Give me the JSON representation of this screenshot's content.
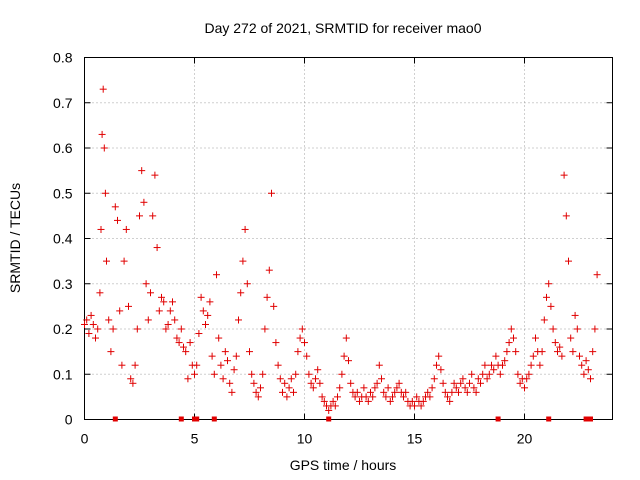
{
  "chart_data": {
    "type": "scatter",
    "title": "Day 272 of 2021, SRMTID for receiver mao0",
    "xlabel": "GPS time / hours",
    "ylabel": "SRMTID / TECUs",
    "xlim": [
      0,
      24
    ],
    "ylim": [
      0,
      0.8
    ],
    "xticks": [
      "0",
      "5",
      "10",
      "15",
      "20"
    ],
    "xtick_values": [
      0,
      5,
      10,
      15,
      20
    ],
    "yticks": [
      "0",
      "0.1",
      "0.2",
      "0.3",
      "0.4",
      "0.5",
      "0.6",
      "0.7",
      "0.8"
    ],
    "ytick_values": [
      0,
      0.1,
      0.2,
      0.3,
      0.4,
      0.5,
      0.6,
      0.7,
      0.8
    ],
    "grid": true,
    "marker": "+",
    "color": "#e00000",
    "series": [
      {
        "name": "SRMTID",
        "points": [
          [
            0.0,
            0.21
          ],
          [
            0.1,
            0.22
          ],
          [
            0.2,
            0.19
          ],
          [
            0.3,
            0.23
          ],
          [
            0.4,
            0.21
          ],
          [
            0.5,
            0.18
          ],
          [
            0.6,
            0.2
          ],
          [
            0.7,
            0.28
          ],
          [
            0.75,
            0.42
          ],
          [
            0.8,
            0.63
          ],
          [
            0.85,
            0.73
          ],
          [
            0.9,
            0.6
          ],
          [
            0.95,
            0.5
          ],
          [
            1.0,
            0.35
          ],
          [
            1.1,
            0.22
          ],
          [
            1.2,
            0.15
          ],
          [
            1.3,
            0.2
          ],
          [
            1.4,
            0.47
          ],
          [
            1.5,
            0.44
          ],
          [
            1.6,
            0.24
          ],
          [
            1.7,
            0.12
          ],
          [
            1.8,
            0.35
          ],
          [
            1.9,
            0.42
          ],
          [
            2.0,
            0.25
          ],
          [
            2.1,
            0.09
          ],
          [
            2.2,
            0.08
          ],
          [
            2.3,
            0.12
          ],
          [
            2.4,
            0.2
          ],
          [
            2.5,
            0.45
          ],
          [
            2.6,
            0.55
          ],
          [
            2.7,
            0.48
          ],
          [
            2.8,
            0.3
          ],
          [
            2.9,
            0.22
          ],
          [
            3.0,
            0.28
          ],
          [
            3.1,
            0.45
          ],
          [
            3.2,
            0.54
          ],
          [
            3.3,
            0.38
          ],
          [
            3.4,
            0.24
          ],
          [
            3.5,
            0.27
          ],
          [
            3.6,
            0.26
          ],
          [
            3.7,
            0.2
          ],
          [
            3.8,
            0.21
          ],
          [
            3.9,
            0.24
          ],
          [
            4.0,
            0.26
          ],
          [
            4.1,
            0.22
          ],
          [
            4.2,
            0.18
          ],
          [
            4.3,
            0.17
          ],
          [
            4.4,
            0.2
          ],
          [
            4.5,
            0.16
          ],
          [
            4.6,
            0.15
          ],
          [
            4.7,
            0.09
          ],
          [
            4.8,
            0.17
          ],
          [
            4.9,
            0.12
          ],
          [
            5.0,
            0.1
          ],
          [
            5.1,
            0.12
          ],
          [
            5.2,
            0.19
          ],
          [
            5.3,
            0.27
          ],
          [
            5.4,
            0.24
          ],
          [
            5.5,
            0.21
          ],
          [
            5.6,
            0.23
          ],
          [
            5.7,
            0.26
          ],
          [
            5.8,
            0.14
          ],
          [
            5.9,
            0.1
          ],
          [
            6.0,
            0.32
          ],
          [
            6.1,
            0.18
          ],
          [
            6.2,
            0.12
          ],
          [
            6.3,
            0.09
          ],
          [
            6.4,
            0.15
          ],
          [
            6.5,
            0.13
          ],
          [
            6.6,
            0.08
          ],
          [
            6.7,
            0.06
          ],
          [
            6.8,
            0.11
          ],
          [
            6.9,
            0.14
          ],
          [
            7.0,
            0.22
          ],
          [
            7.1,
            0.28
          ],
          [
            7.2,
            0.35
          ],
          [
            7.3,
            0.42
          ],
          [
            7.4,
            0.3
          ],
          [
            7.5,
            0.15
          ],
          [
            7.6,
            0.1
          ],
          [
            7.7,
            0.08
          ],
          [
            7.8,
            0.06
          ],
          [
            7.9,
            0.05
          ],
          [
            8.0,
            0.07
          ],
          [
            8.1,
            0.1
          ],
          [
            8.2,
            0.2
          ],
          [
            8.3,
            0.27
          ],
          [
            8.4,
            0.33
          ],
          [
            8.5,
            0.5
          ],
          [
            8.6,
            0.25
          ],
          [
            8.7,
            0.17
          ],
          [
            8.8,
            0.12
          ],
          [
            8.9,
            0.09
          ],
          [
            9.0,
            0.06
          ],
          [
            9.1,
            0.08
          ],
          [
            9.2,
            0.05
          ],
          [
            9.3,
            0.07
          ],
          [
            9.4,
            0.09
          ],
          [
            9.5,
            0.06
          ],
          [
            9.6,
            0.1
          ],
          [
            9.7,
            0.15
          ],
          [
            9.8,
            0.18
          ],
          [
            9.9,
            0.2
          ],
          [
            10.0,
            0.17
          ],
          [
            10.1,
            0.14
          ],
          [
            10.2,
            0.1
          ],
          [
            10.3,
            0.08
          ],
          [
            10.4,
            0.07
          ],
          [
            10.5,
            0.09
          ],
          [
            10.6,
            0.11
          ],
          [
            10.7,
            0.08
          ],
          [
            10.8,
            0.05
          ],
          [
            10.9,
            0.04
          ],
          [
            11.0,
            0.03
          ],
          [
            11.1,
            0.02
          ],
          [
            11.2,
            0.03
          ],
          [
            11.3,
            0.04
          ],
          [
            11.4,
            0.03
          ],
          [
            11.5,
            0.05
          ],
          [
            11.6,
            0.07
          ],
          [
            11.7,
            0.1
          ],
          [
            11.8,
            0.14
          ],
          [
            11.9,
            0.18
          ],
          [
            12.0,
            0.13
          ],
          [
            12.1,
            0.08
          ],
          [
            12.2,
            0.06
          ],
          [
            12.3,
            0.05
          ],
          [
            12.4,
            0.06
          ],
          [
            12.5,
            0.04
          ],
          [
            12.6,
            0.05
          ],
          [
            12.7,
            0.07
          ],
          [
            12.8,
            0.05
          ],
          [
            12.9,
            0.04
          ],
          [
            13.0,
            0.06
          ],
          [
            13.1,
            0.05
          ],
          [
            13.2,
            0.07
          ],
          [
            13.3,
            0.08
          ],
          [
            13.4,
            0.12
          ],
          [
            13.5,
            0.09
          ],
          [
            13.6,
            0.06
          ],
          [
            13.7,
            0.05
          ],
          [
            13.8,
            0.07
          ],
          [
            13.9,
            0.04
          ],
          [
            14.0,
            0.05
          ],
          [
            14.1,
            0.06
          ],
          [
            14.2,
            0.07
          ],
          [
            14.3,
            0.08
          ],
          [
            14.4,
            0.06
          ],
          [
            14.5,
            0.05
          ],
          [
            14.6,
            0.06
          ],
          [
            14.7,
            0.04
          ],
          [
            14.8,
            0.03
          ],
          [
            14.9,
            0.04
          ],
          [
            15.0,
            0.03
          ],
          [
            15.1,
            0.05
          ],
          [
            15.2,
            0.04
          ],
          [
            15.3,
            0.03
          ],
          [
            15.4,
            0.04
          ],
          [
            15.5,
            0.05
          ],
          [
            15.6,
            0.06
          ],
          [
            15.7,
            0.05
          ],
          [
            15.8,
            0.07
          ],
          [
            15.9,
            0.09
          ],
          [
            16.0,
            0.12
          ],
          [
            16.1,
            0.14
          ],
          [
            16.2,
            0.11
          ],
          [
            16.3,
            0.08
          ],
          [
            16.4,
            0.06
          ],
          [
            16.5,
            0.05
          ],
          [
            16.6,
            0.04
          ],
          [
            16.7,
            0.06
          ],
          [
            16.8,
            0.08
          ],
          [
            16.9,
            0.07
          ],
          [
            17.0,
            0.06
          ],
          [
            17.1,
            0.08
          ],
          [
            17.2,
            0.09
          ],
          [
            17.3,
            0.07
          ],
          [
            17.4,
            0.06
          ],
          [
            17.5,
            0.08
          ],
          [
            17.6,
            0.1
          ],
          [
            17.7,
            0.07
          ],
          [
            17.8,
            0.06
          ],
          [
            17.9,
            0.09
          ],
          [
            18.0,
            0.08
          ],
          [
            18.1,
            0.1
          ],
          [
            18.2,
            0.12
          ],
          [
            18.3,
            0.09
          ],
          [
            18.4,
            0.1
          ],
          [
            18.5,
            0.12
          ],
          [
            18.6,
            0.11
          ],
          [
            18.7,
            0.14
          ],
          [
            18.8,
            0.12
          ],
          [
            18.9,
            0.1
          ],
          [
            19.0,
            0.12
          ],
          [
            19.1,
            0.13
          ],
          [
            19.2,
            0.15
          ],
          [
            19.3,
            0.17
          ],
          [
            19.4,
            0.2
          ],
          [
            19.5,
            0.18
          ],
          [
            19.6,
            0.15
          ],
          [
            19.7,
            0.1
          ],
          [
            19.8,
            0.08
          ],
          [
            19.9,
            0.09
          ],
          [
            20.0,
            0.07
          ],
          [
            20.1,
            0.09
          ],
          [
            20.2,
            0.1
          ],
          [
            20.3,
            0.12
          ],
          [
            20.4,
            0.14
          ],
          [
            20.5,
            0.18
          ],
          [
            20.6,
            0.15
          ],
          [
            20.7,
            0.12
          ],
          [
            20.8,
            0.15
          ],
          [
            20.9,
            0.22
          ],
          [
            21.0,
            0.27
          ],
          [
            21.1,
            0.3
          ],
          [
            21.2,
            0.25
          ],
          [
            21.3,
            0.2
          ],
          [
            21.4,
            0.17
          ],
          [
            21.5,
            0.15
          ],
          [
            21.6,
            0.16
          ],
          [
            21.7,
            0.14
          ],
          [
            21.8,
            0.54
          ],
          [
            21.9,
            0.45
          ],
          [
            22.0,
            0.35
          ],
          [
            22.1,
            0.18
          ],
          [
            22.2,
            0.15
          ],
          [
            22.3,
            0.23
          ],
          [
            22.4,
            0.2
          ],
          [
            22.5,
            0.14
          ],
          [
            22.6,
            0.12
          ],
          [
            22.7,
            0.1
          ],
          [
            22.8,
            0.13
          ],
          [
            22.9,
            0.11
          ],
          [
            23.0,
            0.09
          ],
          [
            23.1,
            0.15
          ],
          [
            23.2,
            0.2
          ],
          [
            23.3,
            0.32
          ]
        ]
      }
    ],
    "gap_markers_x": [
      1.4,
      4.4,
      5.0,
      5.1,
      5.9,
      11.1,
      18.8,
      21.1,
      22.8,
      23.0
    ]
  }
}
